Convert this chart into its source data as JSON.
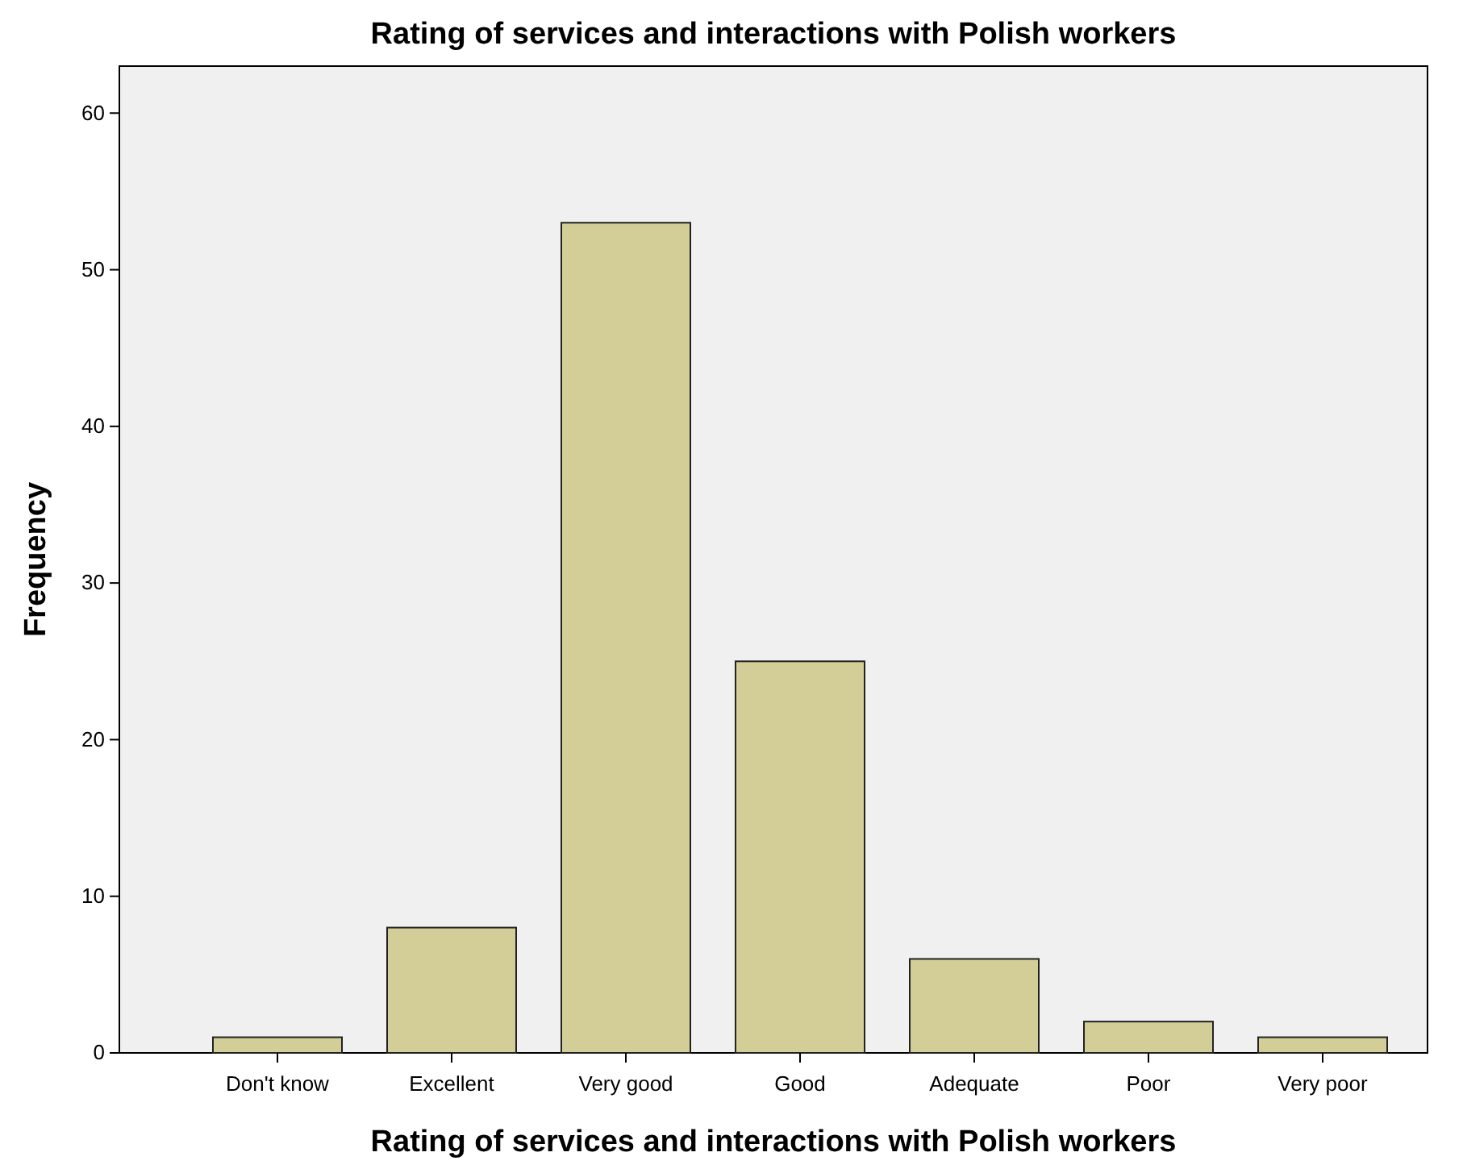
{
  "chart_data": {
    "type": "bar",
    "title": "Rating of services and interactions with Polish workers",
    "xlabel": "Rating of services and interactions with Polish workers",
    "ylabel": "Frequency",
    "categories": [
      "Don't know",
      "Excellent",
      "Very good",
      "Good",
      "Adequate",
      "Poor",
      "Very poor"
    ],
    "values": [
      1,
      8,
      53,
      25,
      6,
      2,
      1
    ],
    "color": "#d3ce97",
    "ylim": [
      0,
      63
    ],
    "yticks": [
      0,
      10,
      20,
      30,
      40,
      50,
      60
    ],
    "grid": false
  }
}
